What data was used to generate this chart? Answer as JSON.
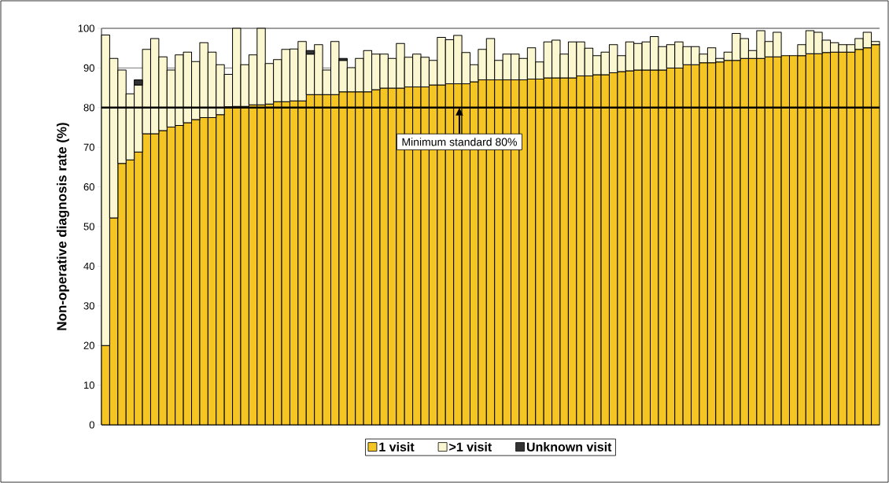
{
  "chart_data": {
    "type": "bar",
    "stacked": true,
    "ylabel": "Non-operative diagnosis rate (%)",
    "categories": [
      null,
      null,
      null,
      null,
      null,
      null,
      null,
      null,
      null,
      null,
      null,
      null,
      null,
      null,
      null,
      null,
      null,
      null,
      null,
      null,
      null,
      null,
      null,
      null,
      null,
      null,
      null,
      null,
      null,
      null,
      null,
      null,
      null,
      null,
      null,
      null,
      null,
      null,
      null,
      null,
      null,
      null,
      null,
      null,
      null,
      null,
      null,
      null,
      null,
      null,
      null,
      null,
      null,
      null,
      null,
      null,
      null,
      null,
      null,
      null,
      null,
      null,
      null,
      null,
      null,
      null,
      null,
      null,
      null,
      null,
      null,
      null,
      null,
      null,
      null,
      null,
      null,
      null,
      null,
      null,
      null,
      null,
      null,
      null,
      null,
      null,
      null,
      null,
      null,
      null,
      null,
      null,
      null,
      null,
      null
    ],
    "series": [
      {
        "name": "1 visit",
        "color": "#f5c623",
        "values": [
          20,
          52.2,
          65.9,
          66.8,
          68.8,
          73.4,
          73.4,
          74.2,
          75.1,
          75.5,
          76.2,
          77.0,
          77.5,
          77.5,
          78.2,
          80.2,
          80.3,
          80.3,
          80.7,
          80.7,
          80.9,
          81.5,
          81.5,
          81.7,
          81.7,
          83.3,
          83.3,
          83.3,
          83.3,
          84.0,
          84.0,
          84.0,
          84.0,
          84.5,
          84.9,
          84.9,
          84.9,
          85.2,
          85.2,
          85.2,
          85.7,
          85.7,
          86.0,
          86.0,
          86.0,
          86.5,
          87.0,
          87.0,
          87.0,
          87.0,
          87.0,
          87.0,
          87.2,
          87.2,
          87.5,
          87.5,
          87.5,
          87.5,
          88.0,
          88.0,
          88.3,
          88.3,
          88.8,
          89.1,
          89.3,
          89.5,
          89.5,
          89.5,
          89.5,
          90.0,
          90.0,
          90.8,
          90.8,
          91.3,
          91.3,
          91.5,
          91.9,
          91.9,
          92.4,
          92.4,
          92.4,
          92.8,
          92.8,
          93.1,
          93.1,
          93.1,
          93.6,
          93.6,
          93.9,
          94.0,
          94.0,
          94.0,
          94.7,
          95.1,
          95.9
        ]
      },
      {
        "name": ">1 visit",
        "color": "#fbf7d0",
        "values": [
          78.3,
          40.2,
          23.6,
          16.7,
          16.9,
          21.3,
          24.0,
          18.6,
          14.4,
          17.8,
          17.8,
          14.6,
          18.9,
          16.5,
          12.6,
          8.2,
          19.7,
          10.5,
          12.6,
          19.3,
          10.2,
          10.6,
          13.2,
          13.1,
          15.0,
          10.2,
          12.6,
          6.2,
          13.4,
          7.9,
          6.1,
          8.4,
          10.4,
          9.0,
          8.6,
          7.5,
          11.3,
          7.5,
          8.3,
          7.5,
          6.2,
          12.0,
          11.1,
          12.2,
          7.9,
          4.3,
          7.7,
          10.4,
          4.9,
          6.5,
          6.5,
          5.4,
          7.9,
          4.3,
          9.1,
          9.5,
          6.0,
          9.1,
          8.6,
          7.0,
          4.8,
          5.7,
          7.1,
          4.0,
          7.3,
          6.7,
          7.1,
          8.4,
          5.9,
          5.9,
          6.6,
          4.6,
          4.6,
          2.2,
          3.8,
          0.9,
          2.1,
          6.8,
          5.0,
          2.0,
          7.0,
          3.9,
          6.2,
          null,
          null,
          2.8,
          5.8,
          5.4,
          3.1,
          2.4,
          1.9,
          1.9,
          2.7,
          3.9,
          0.8
        ]
      },
      {
        "name": "Unknown visit",
        "color": "#333333",
        "values": [
          null,
          null,
          null,
          null,
          1.3,
          null,
          null,
          null,
          null,
          null,
          null,
          null,
          null,
          null,
          null,
          null,
          null,
          null,
          null,
          null,
          null,
          null,
          null,
          null,
          null,
          0.9,
          null,
          null,
          null,
          0.5,
          null,
          null,
          null,
          null,
          null,
          null,
          null,
          null,
          null,
          null,
          null,
          null,
          null,
          null,
          null,
          null,
          null,
          null,
          null,
          null,
          null,
          null,
          null,
          null,
          null,
          null,
          null,
          null,
          null,
          null,
          null,
          null,
          null,
          null,
          null,
          null,
          null,
          null,
          null,
          null,
          null,
          null,
          null,
          null,
          null,
          null,
          null,
          null,
          null,
          null,
          null,
          null,
          null,
          null,
          null,
          null,
          null,
          null,
          null,
          null,
          null,
          null,
          null,
          null,
          null
        ]
      }
    ],
    "ylim": [
      0,
      100
    ],
    "yticks": [
      0,
      10,
      20,
      30,
      40,
      50,
      60,
      70,
      80,
      90,
      100
    ],
    "grid": "y",
    "legend": "bottom",
    "ref_lines": [
      {
        "axis": "y",
        "value": 80,
        "label": "Minimum standard 80%"
      }
    ]
  }
}
